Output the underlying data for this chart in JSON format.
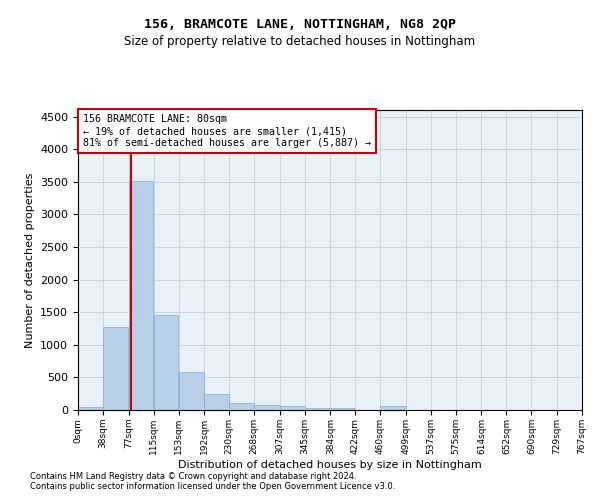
{
  "title": "156, BRAMCOTE LANE, NOTTINGHAM, NG8 2QP",
  "subtitle": "Size of property relative to detached houses in Nottingham",
  "xlabel": "Distribution of detached houses by size in Nottingham",
  "ylabel": "Number of detached properties",
  "bar_color": "#b8d0ea",
  "bar_edge_color": "#7aafd4",
  "background_color": "#ffffff",
  "grid_color": "#c8c8c8",
  "annotation_line_color": "#cc0000",
  "annotation_box_color": "#cc0000",
  "annotation_line1": "156 BRAMCOTE LANE: 80sqm",
  "annotation_line2": "← 19% of detached houses are smaller (1,415)",
  "annotation_line3": "81% of semi-detached houses are larger (5,887) →",
  "property_size_sqm": 80,
  "bin_edges": [
    0,
    38,
    77,
    115,
    153,
    192,
    230,
    268,
    307,
    345,
    384,
    422,
    460,
    499,
    537,
    575,
    614,
    652,
    690,
    729,
    767
  ],
  "bar_heights": [
    40,
    1280,
    3510,
    1460,
    580,
    240,
    115,
    80,
    55,
    35,
    35,
    0,
    55,
    0,
    0,
    0,
    0,
    0,
    0,
    0
  ],
  "ylim": [
    0,
    4600
  ],
  "yticks": [
    0,
    500,
    1000,
    1500,
    2000,
    2500,
    3000,
    3500,
    4000,
    4500
  ],
  "footnote1": "Contains HM Land Registry data © Crown copyright and database right 2024.",
  "footnote2": "Contains public sector information licensed under the Open Government Licence v3.0."
}
